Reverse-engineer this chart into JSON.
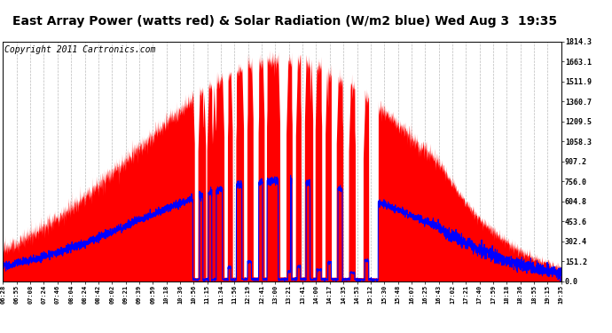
{
  "title": "East Array Power (watts red) & Solar Radiation (W/m2 blue) Wed Aug 3  19:35",
  "copyright": "Copyright 2011 Cartronics.com",
  "background_color": "#ffffff",
  "grid_color": "#bbbbbb",
  "y_max": 1814.3,
  "y_min": 0.0,
  "y_ticks": [
    0.0,
    151.2,
    302.4,
    453.6,
    604.8,
    756.0,
    907.2,
    1058.3,
    1209.5,
    1360.7,
    1511.9,
    1663.1,
    1814.3
  ],
  "x_labels": [
    "06:28",
    "06:55",
    "07:08",
    "07:24",
    "07:46",
    "08:04",
    "08:24",
    "08:42",
    "09:02",
    "09:21",
    "09:39",
    "09:59",
    "10:18",
    "10:36",
    "10:56",
    "11:15",
    "11:34",
    "11:56",
    "12:19",
    "12:41",
    "13:00",
    "13:21",
    "13:41",
    "14:00",
    "14:17",
    "14:35",
    "14:53",
    "15:12",
    "15:30",
    "15:48",
    "16:07",
    "16:25",
    "16:43",
    "17:02",
    "17:21",
    "17:40",
    "17:59",
    "18:18",
    "18:36",
    "18:55",
    "19:15",
    "19:35"
  ],
  "red_color": "#ff0000",
  "blue_color": "#0000ff",
  "title_fontsize": 10,
  "copyright_fontsize": 7
}
